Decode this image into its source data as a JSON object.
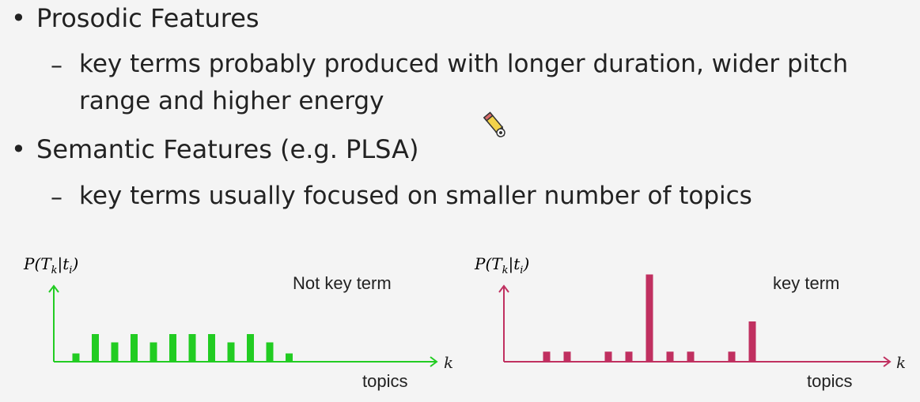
{
  "bullets": [
    {
      "title": "Prosodic Features",
      "sub": [
        "key terms probably produced with longer duration, wider pitch",
        "range and higher energy"
      ]
    },
    {
      "title": "Semantic Features (e.g. PLSA)",
      "sub": [
        "key terms usually focused on smaller number of topics"
      ]
    }
  ],
  "bullet_symbol": "•",
  "dash_symbol": "–",
  "chart_data": [
    {
      "type": "bar",
      "ylabel": "P(T_k|t_i)",
      "ylabel_parts": {
        "p": "P(T",
        "k_sub": "k",
        "mid": "|t",
        "i_sub": "i",
        "end": ")"
      },
      "xlabel": "topics",
      "xvar": "k",
      "annotation": "Not key term",
      "color": "#22cc22",
      "values": [
        0.15,
        0.5,
        0.35,
        0.5,
        0.35,
        0.5,
        0.5,
        0.5,
        0.35,
        0.5,
        0.35,
        0.15
      ],
      "ylim": [
        0,
        1.5
      ],
      "axis_ticks": false
    },
    {
      "type": "bar",
      "ylabel": "P(T_k|t_i)",
      "ylabel_parts": {
        "p": "P(T",
        "k_sub": "k",
        "mid": "|t",
        "i_sub": "i",
        "end": ")"
      },
      "xlabel": "topics",
      "xvar": "k",
      "annotation": "key term",
      "color": "#c03060",
      "values": [
        0.15,
        0.15,
        0,
        0.15,
        0.15,
        1.3,
        0.15,
        0.15,
        0,
        0.15,
        0.6
      ],
      "ylim": [
        0,
        1.5
      ],
      "axis_ticks": false
    }
  ],
  "pencil_icon": "pencil-cursor-icon"
}
